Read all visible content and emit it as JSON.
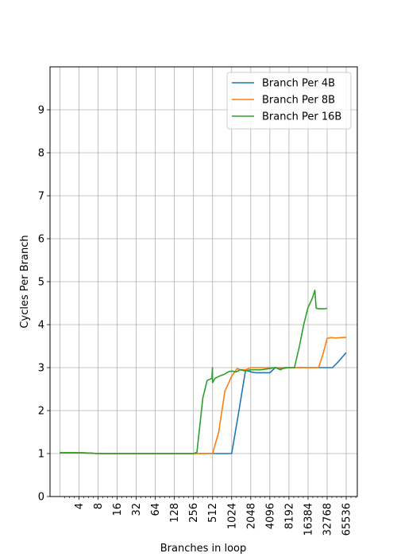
{
  "chart_data": {
    "type": "line",
    "title": "",
    "xlabel": "Branches in loop",
    "ylabel": "Cycles Per Branch",
    "x_scale": "log2",
    "xlim": [
      1.4,
      98000
    ],
    "ylim": [
      0,
      10
    ],
    "x_ticks": [
      4,
      8,
      16,
      32,
      64,
      128,
      256,
      512,
      1024,
      2048,
      4096,
      8192,
      16384,
      32768,
      65536
    ],
    "x_tick_labels": [
      "4",
      "8",
      "16",
      "32",
      "64",
      "128",
      "256",
      "512",
      "1024",
      "2048",
      "4096",
      "8192",
      "16384",
      "32768",
      "65536"
    ],
    "y_ticks": [
      0,
      1,
      2,
      3,
      4,
      5,
      6,
      7,
      8,
      9
    ],
    "y_tick_labels": [
      "0",
      "1",
      "2",
      "3",
      "4",
      "5",
      "6",
      "7",
      "8",
      "9"
    ],
    "grid": true,
    "legend_position": "top-right",
    "series": [
      {
        "name": "Branch Per 4B",
        "color": "#1f77b4",
        "points": [
          [
            2,
            1.02
          ],
          [
            4,
            1.02
          ],
          [
            6,
            1.01
          ],
          [
            8,
            1.0
          ],
          [
            16,
            1.0
          ],
          [
            64,
            1.0
          ],
          [
            256,
            1.0
          ],
          [
            512,
            1.0
          ],
          [
            1024,
            1.0
          ],
          [
            1300,
            1.9
          ],
          [
            1700,
            2.95
          ],
          [
            2048,
            2.9
          ],
          [
            2500,
            2.88
          ],
          [
            3000,
            2.88
          ],
          [
            3600,
            2.88
          ],
          [
            4096,
            2.88
          ],
          [
            5000,
            3.0
          ],
          [
            6500,
            2.98
          ],
          [
            8192,
            3.0
          ],
          [
            16384,
            3.0
          ],
          [
            24000,
            3.0
          ],
          [
            32768,
            3.0
          ],
          [
            40000,
            3.0
          ],
          [
            50000,
            3.15
          ],
          [
            65536,
            3.35
          ]
        ]
      },
      {
        "name": "Branch Per 8B",
        "color": "#ff7f0e",
        "points": [
          [
            2,
            1.02
          ],
          [
            4,
            1.02
          ],
          [
            6,
            1.01
          ],
          [
            8,
            1.0
          ],
          [
            16,
            1.0
          ],
          [
            64,
            1.0
          ],
          [
            256,
            1.0
          ],
          [
            300,
            1.0
          ],
          [
            512,
            1.0
          ],
          [
            640,
            1.5
          ],
          [
            800,
            2.45
          ],
          [
            1024,
            2.8
          ],
          [
            1250,
            2.98
          ],
          [
            1400,
            2.95
          ],
          [
            1700,
            2.95
          ],
          [
            2048,
            3.0
          ],
          [
            4096,
            3.0
          ],
          [
            8192,
            3.0
          ],
          [
            16384,
            3.0
          ],
          [
            20000,
            3.0
          ],
          [
            24000,
            3.0
          ],
          [
            28000,
            3.3
          ],
          [
            32768,
            3.68
          ],
          [
            38000,
            3.7
          ],
          [
            45000,
            3.69
          ],
          [
            55000,
            3.7
          ],
          [
            65536,
            3.7
          ]
        ]
      },
      {
        "name": "Branch Per 16B",
        "color": "#2ca02c",
        "points": [
          [
            2,
            1.02
          ],
          [
            4,
            1.02
          ],
          [
            6,
            1.01
          ],
          [
            8,
            1.0
          ],
          [
            16,
            1.0
          ],
          [
            64,
            1.0
          ],
          [
            128,
            1.0
          ],
          [
            256,
            1.0
          ],
          [
            290,
            1.03
          ],
          [
            360,
            2.3
          ],
          [
            420,
            2.7
          ],
          [
            500,
            2.75
          ],
          [
            510,
            3.0
          ],
          [
            512,
            2.65
          ],
          [
            560,
            2.75
          ],
          [
            650,
            2.8
          ],
          [
            800,
            2.85
          ],
          [
            900,
            2.9
          ],
          [
            1024,
            2.92
          ],
          [
            1200,
            2.9
          ],
          [
            1400,
            2.95
          ],
          [
            1700,
            2.92
          ],
          [
            2048,
            2.95
          ],
          [
            3000,
            2.95
          ],
          [
            4096,
            2.98
          ],
          [
            5000,
            3.0
          ],
          [
            6000,
            2.95
          ],
          [
            7000,
            3.0
          ],
          [
            8192,
            3.0
          ],
          [
            10000,
            3.0
          ],
          [
            12000,
            3.5
          ],
          [
            14000,
            4.0
          ],
          [
            16384,
            4.4
          ],
          [
            19000,
            4.6
          ],
          [
            21000,
            4.8
          ],
          [
            22000,
            4.38
          ],
          [
            25000,
            4.37
          ],
          [
            30000,
            4.37
          ],
          [
            32768,
            4.38
          ]
        ]
      }
    ]
  }
}
